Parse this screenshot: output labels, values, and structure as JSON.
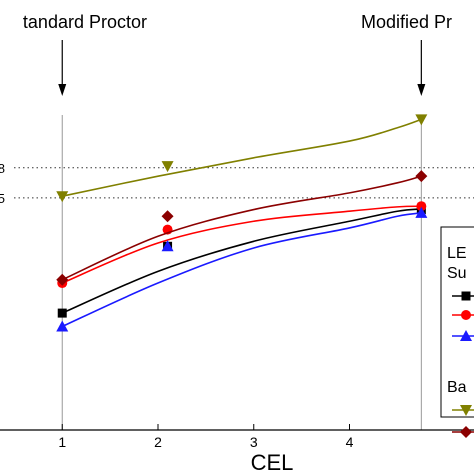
{
  "chart_data": {
    "type": "line",
    "xlabel": "CEL",
    "x_ticks": [
      "1",
      "2",
      "3",
      "4"
    ],
    "xlim": [
      0.35,
      5.3
    ],
    "ylim": [
      0,
      1
    ],
    "annotations": [
      {
        "label": "tandard Proctor",
        "x": 1
      },
      {
        "label": "Modified Pr",
        "x": 4.75
      }
    ],
    "reference_lines": [
      {
        "label": "8",
        "y": 0.785
      },
      {
        "label": "5",
        "y": 0.695
      }
    ],
    "legend": {
      "placement": "bottom-right (clipped)",
      "header": "LE",
      "group1": "Su",
      "group2": "Ba"
    },
    "colors": {
      "black": "#000000",
      "red": "#ff0000",
      "blue": "#1a1aff",
      "olive": "#808000",
      "darkred": "#8b0000",
      "guide": "#999999",
      "dotted": "#333333"
    },
    "series": [
      {
        "color": "black",
        "marker": "square",
        "x": [
          1,
          2.1,
          4.75
        ],
        "y": [
          0.35,
          0.55,
          0.66
        ],
        "curve": [
          0.35,
          0.475,
          0.565,
          0.625,
          0.655,
          0.662
        ]
      },
      {
        "color": "red",
        "marker": "circle",
        "x": [
          1,
          2.1,
          4.75
        ],
        "y": [
          0.44,
          0.6,
          0.67
        ],
        "curve": [
          0.44,
          0.56,
          0.625,
          0.655,
          0.668,
          0.67
        ]
      },
      {
        "color": "blue",
        "marker": "triangle-up",
        "x": [
          1,
          2.1,
          4.75
        ],
        "y": [
          0.31,
          0.55,
          0.65
        ],
        "curve": [
          0.31,
          0.44,
          0.545,
          0.605,
          0.64,
          0.65
        ]
      },
      {
        "color": "olive",
        "marker": "triangle-down",
        "x": [
          1,
          2.1,
          4.75
        ],
        "y": [
          0.7,
          0.79,
          0.93
        ],
        "curve": [
          0.7,
          0.76,
          0.815,
          0.865,
          0.905,
          0.93
        ]
      },
      {
        "color": "darkred",
        "marker": "diamond",
        "x": [
          1,
          2.1,
          4.75
        ],
        "y": [
          0.45,
          0.64,
          0.76
        ],
        "curve": [
          0.45,
          0.58,
          0.66,
          0.71,
          0.74,
          0.76
        ]
      }
    ],
    "curve_x": [
      1,
      2,
      3,
      4,
      4.5,
      4.75
    ]
  }
}
